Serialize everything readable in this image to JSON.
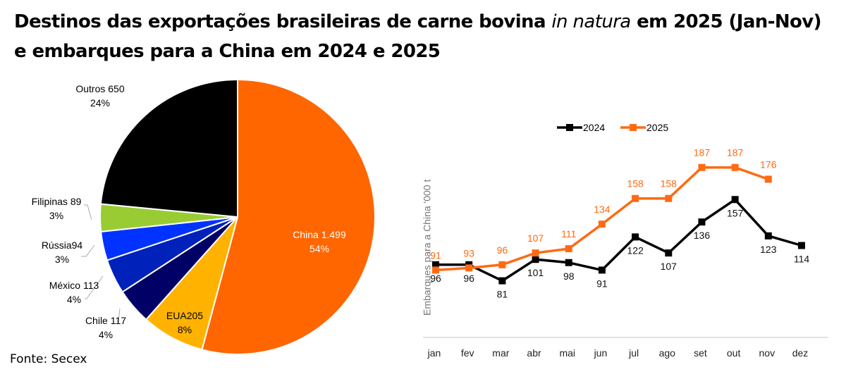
{
  "title": {
    "part1": "Destinos das exportações brasileiras de carne bovina ",
    "italic": "in natura",
    "part2": " em 2025 (Jan-Nov) e embarques para a China em 2024 e 2025"
  },
  "source": "Fonte: Secex",
  "chart_data": [
    {
      "type": "pie",
      "title": "Destinos das exportações brasileiras de carne bovina in natura em 2025 (Jan-Nov)",
      "slices": [
        {
          "name": "China",
          "label": "China 1.499",
          "value": 1499,
          "pct_label": "54%",
          "color": "#ff6600"
        },
        {
          "name": "EUA",
          "label": "EUA205",
          "value": 205,
          "pct_label": "8%",
          "color": "#ffb300"
        },
        {
          "name": "Chile",
          "label": "Chile 117",
          "value": 117,
          "pct_label": "4%",
          "color": "#000066"
        },
        {
          "name": "México",
          "label": "México 113",
          "value": 113,
          "pct_label": "4%",
          "color": "#0022bb"
        },
        {
          "name": "Rússia",
          "label": "Rússia94",
          "value": 94,
          "pct_label": "3%",
          "color": "#0033ff"
        },
        {
          "name": "Filipinas",
          "label": "Filipinas 89",
          "value": 89,
          "pct_label": "3%",
          "color": "#99cc33"
        },
        {
          "name": "Outros",
          "label": "Outros 650",
          "value": 650,
          "pct_label": "24%",
          "color": "#000000"
        }
      ]
    },
    {
      "type": "line",
      "ylabel": "Embarques para a China '000 t",
      "categories": [
        "jan",
        "fev",
        "mar",
        "abr",
        "mai",
        "jun",
        "jul",
        "ago",
        "set",
        "out",
        "nov",
        "dez"
      ],
      "ylim": [
        28,
        200
      ],
      "legend": "top",
      "grid": false,
      "series": [
        {
          "name": "2024",
          "color": "#000000",
          "values": [
            96,
            96,
            81,
            101,
            98,
            91,
            122,
            107,
            136,
            157,
            123,
            114
          ]
        },
        {
          "name": "2025",
          "color": "#ff6a13",
          "values": [
            91,
            93,
            96,
            107,
            111,
            134,
            158,
            158,
            187,
            187,
            176,
            null
          ]
        }
      ]
    }
  ]
}
